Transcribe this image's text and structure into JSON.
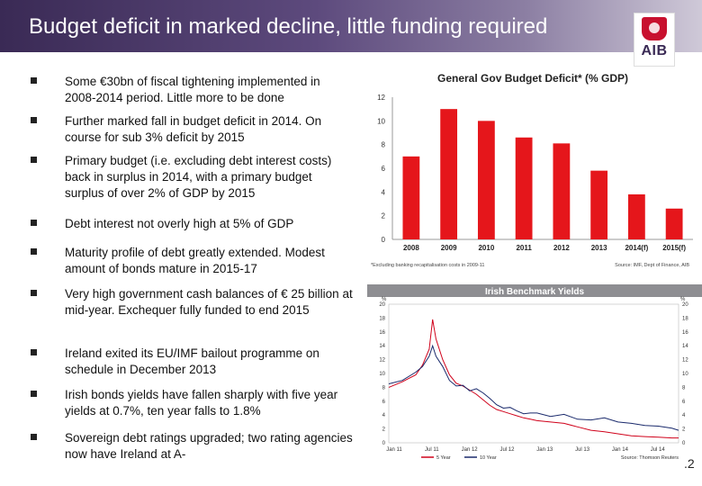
{
  "slide": {
    "title": "Budget deficit in marked decline, little funding required",
    "page_number": ".2",
    "logo_text": "AIB"
  },
  "bullets": [
    {
      "text": "Some €30bn of  fiscal tightening implemented in 2008-2014 period. Little more to be done"
    },
    {
      "text": "Further marked fall in budget deficit  in 2014. On course for sub 3% deficit by 2015"
    },
    {
      "text": "Primary budget (i.e. excluding debt interest costs) back in surplus in 2014, with a primary budget surplus of over 2% of GDP by 2015"
    },
    {
      "text": "Debt interest not overly high at 5% of GDP"
    },
    {
      "text": "Maturity profile of debt greatly extended. Modest amount of bonds mature in 2015-17"
    },
    {
      "text": "Very high government cash balances of € 25 billion at mid-year. Exchequer fully funded to end 2015"
    },
    {
      "text": "Ireland exited its EU/IMF bailout programme on schedule in December 2013"
    },
    {
      "text": "Irish bonds yields have fallen sharply with five year yields at 0.7%, ten year falls to 1.8%"
    },
    {
      "text": "Sovereign debt ratings upgraded; two rating agencies now have Ireland at A-"
    }
  ],
  "chart_data": [
    {
      "type": "bar",
      "title": "General Gov Budget Deficit* (% GDP)",
      "categories": [
        "2008",
        "2009",
        "2010",
        "2011",
        "2012",
        "2013",
        "2014(f)",
        "2015(f)"
      ],
      "values": [
        7.0,
        11.0,
        10.0,
        8.6,
        8.1,
        5.8,
        3.8,
        2.6
      ],
      "ylim": [
        0,
        12
      ],
      "yticks": [
        "0",
        "2",
        "4",
        "6",
        "8",
        "10",
        "12"
      ],
      "footnote": "*Excluding banking recapitalisation costs in 2009-11",
      "source": "Source: IMF, Dept of Finance, AIB",
      "bar_color": "#e5161b",
      "grid": false
    },
    {
      "type": "line",
      "title": "Irish Benchmark Yields",
      "y_unit_left": "%",
      "y_unit_right": "%",
      "ylim": [
        0,
        20
      ],
      "yticks": [
        "0",
        "2",
        "4",
        "6",
        "8",
        "10",
        "12",
        "14",
        "16",
        "18",
        "20"
      ],
      "x_labels": [
        "Jan 11",
        "Jul 11",
        "Jan 12",
        "Jul 12",
        "Jan 13",
        "Jul 13",
        "Jan 14",
        "Jul 14"
      ],
      "series": [
        {
          "name": "5 Year",
          "color": "#d0021b",
          "x": [
            0,
            2,
            4,
            5,
            6,
            6.5,
            7,
            8,
            9,
            10,
            11,
            12,
            13,
            14,
            15,
            16,
            17,
            18,
            19,
            20,
            21,
            22,
            24,
            26,
            28,
            30,
            32,
            34,
            36,
            38,
            40,
            42,
            43
          ],
          "values": [
            8.0,
            8.8,
            9.8,
            11.2,
            13.5,
            17.8,
            15.0,
            12.0,
            9.8,
            8.6,
            8.2,
            7.6,
            7.0,
            6.2,
            5.4,
            4.8,
            4.5,
            4.2,
            3.9,
            3.6,
            3.4,
            3.2,
            3.0,
            2.8,
            2.3,
            1.8,
            1.6,
            1.3,
            1.0,
            0.9,
            0.8,
            0.7,
            0.7
          ]
        },
        {
          "name": "10 Year",
          "color": "#1a2a6c",
          "x": [
            0,
            2,
            4,
            5,
            6,
            6.5,
            7,
            8,
            9,
            10,
            11,
            12,
            13,
            14,
            15,
            16,
            17,
            18,
            19,
            20,
            21,
            22,
            24,
            26,
            28,
            30,
            32,
            34,
            36,
            38,
            40,
            42,
            43
          ],
          "values": [
            8.5,
            9.0,
            10.2,
            11.0,
            12.5,
            14.0,
            12.5,
            11.0,
            9.0,
            8.2,
            8.3,
            7.5,
            7.8,
            7.2,
            6.4,
            5.5,
            5.0,
            5.1,
            4.6,
            4.2,
            4.3,
            4.3,
            3.8,
            4.1,
            3.4,
            3.3,
            3.6,
            3.0,
            2.8,
            2.5,
            2.4,
            2.1,
            1.8
          ]
        }
      ],
      "source": "Source: Thomson Reuters",
      "grid": false
    }
  ]
}
